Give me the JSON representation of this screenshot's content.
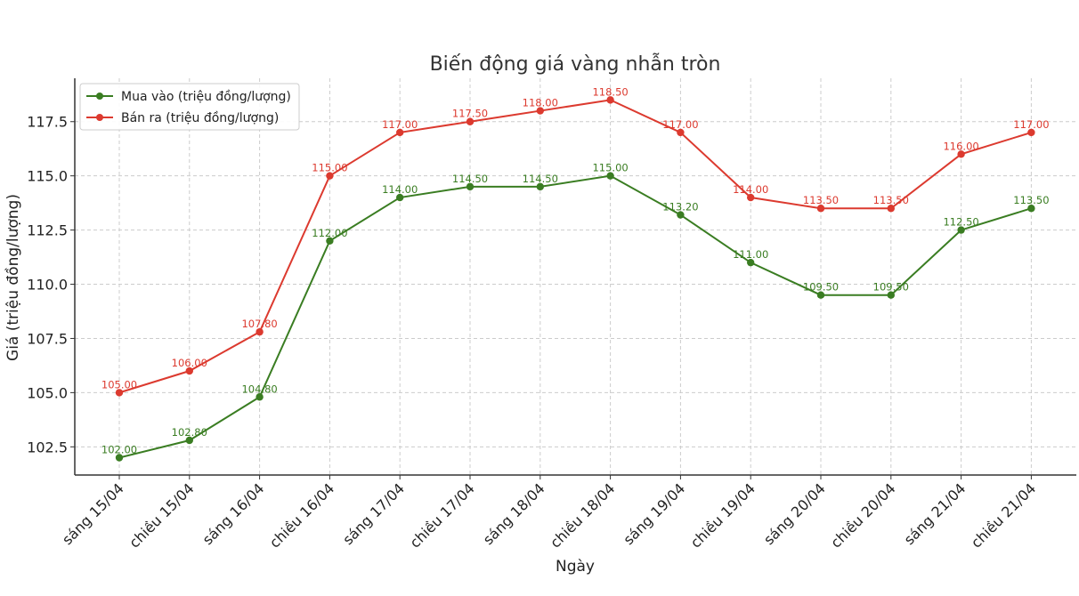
{
  "chart_data": {
    "type": "line",
    "title": "Biến động giá vàng nhẫn tròn",
    "xlabel": "Ngày",
    "ylabel": "Giá (triệu đồng/lượng)",
    "categories": [
      "sáng 15/04",
      "chiều 15/04",
      "sáng 16/04",
      "chiều 16/04",
      "sáng 17/04",
      "chiều 17/04",
      "sáng 18/04",
      "chiều 18/04",
      "sáng 19/04",
      "chiều 19/04",
      "sáng 20/04",
      "chiều 20/04",
      "sáng 21/04",
      "chiều 21/04"
    ],
    "ylim": [
      101.2,
      119.5
    ],
    "yticks": [
      "102.5",
      "105.0",
      "107.5",
      "110.0",
      "112.5",
      "115.0",
      "117.5"
    ],
    "grid": true,
    "legend_position": "top-left",
    "series": [
      {
        "name": "Mua vào (triệu đồng/lượng)",
        "color": "#3a7d22",
        "values": [
          102.0,
          102.8,
          104.8,
          112.0,
          114.0,
          114.5,
          114.5,
          115.0,
          113.2,
          111.0,
          109.5,
          109.5,
          112.5,
          113.5
        ],
        "labels": [
          "102.00",
          "102.80",
          "104.80",
          "112.00",
          "114.00",
          "114.50",
          "114.50",
          "115.00",
          "113.20",
          "111.00",
          "109.50",
          "109.50",
          "112.50",
          "113.50"
        ]
      },
      {
        "name": "Bán ra (triệu đồng/lượng)",
        "color": "#dc3a2f",
        "values": [
          105.0,
          106.0,
          107.8,
          115.0,
          117.0,
          117.5,
          118.0,
          118.5,
          117.0,
          114.0,
          113.5,
          113.5,
          116.0,
          117.0
        ],
        "labels": [
          "105.00",
          "106.00",
          "107.80",
          "115.00",
          "117.00",
          "117.50",
          "118.00",
          "118.50",
          "117.00",
          "114.00",
          "113.50",
          "113.50",
          "116.00",
          "117.00"
        ]
      }
    ]
  }
}
